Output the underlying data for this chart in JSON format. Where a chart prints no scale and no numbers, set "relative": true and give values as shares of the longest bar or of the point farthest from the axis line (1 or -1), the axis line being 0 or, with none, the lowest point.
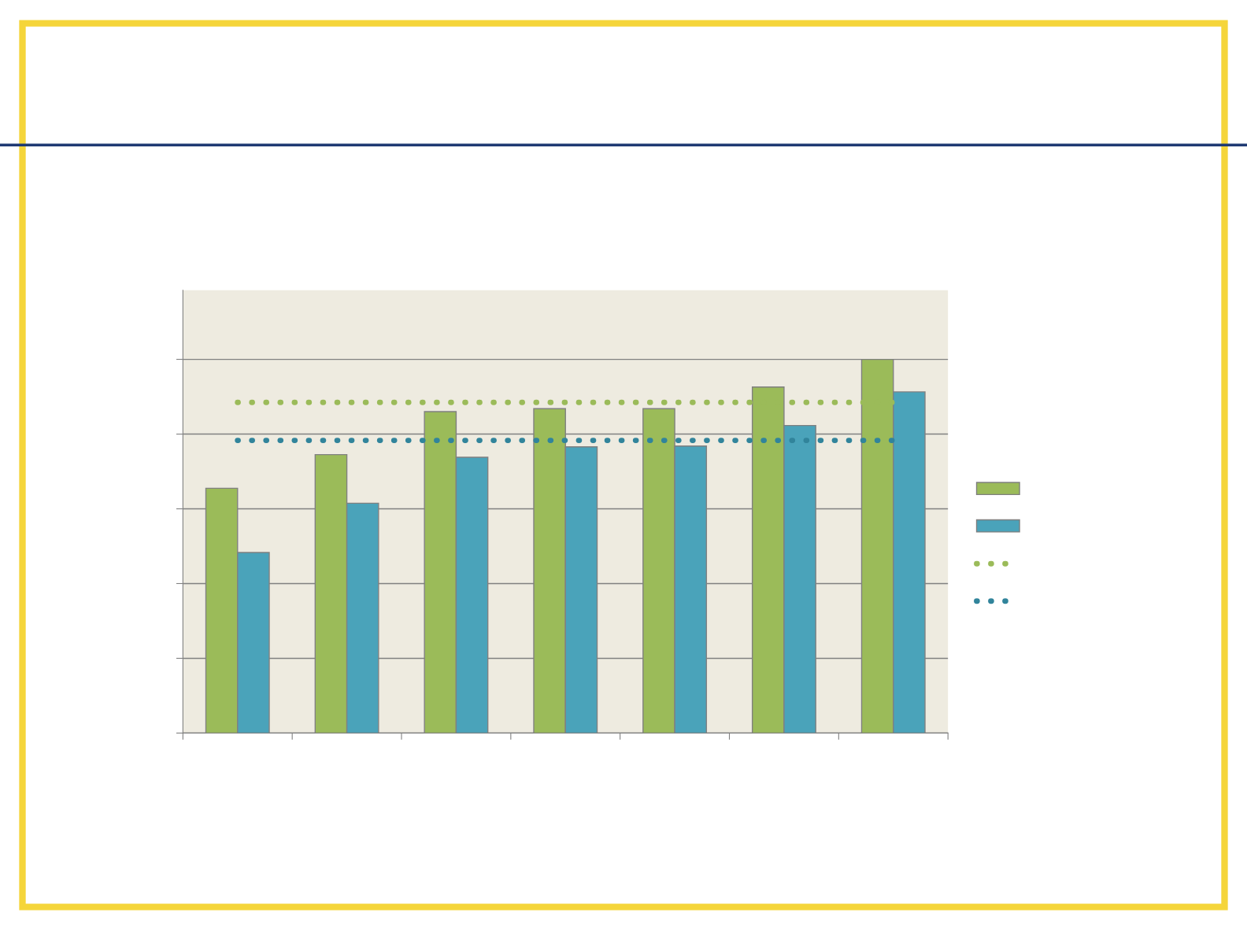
{
  "chart_data": {
    "type": "bar",
    "relative": true,
    "categories": [
      null,
      null,
      null,
      null,
      null,
      null,
      null
    ],
    "series": [
      {
        "color": "#9bbb59",
        "values": [
          0.655,
          0.745,
          0.86,
          0.868,
          0.868,
          0.926,
          1
        ]
      },
      {
        "color": "#4aa3ba",
        "values": [
          0.483,
          0.615,
          0.738,
          0.766,
          0.768,
          0.823,
          0.913
        ]
      }
    ],
    "ref_lines": [
      {
        "axis": "y",
        "value": 0.885,
        "color": "#9bbb59",
        "line_style": "dotted"
      },
      {
        "axis": "y",
        "value": 0.783,
        "color": "#31849b",
        "line_style": "dotted"
      }
    ],
    "grid": "y"
  }
}
